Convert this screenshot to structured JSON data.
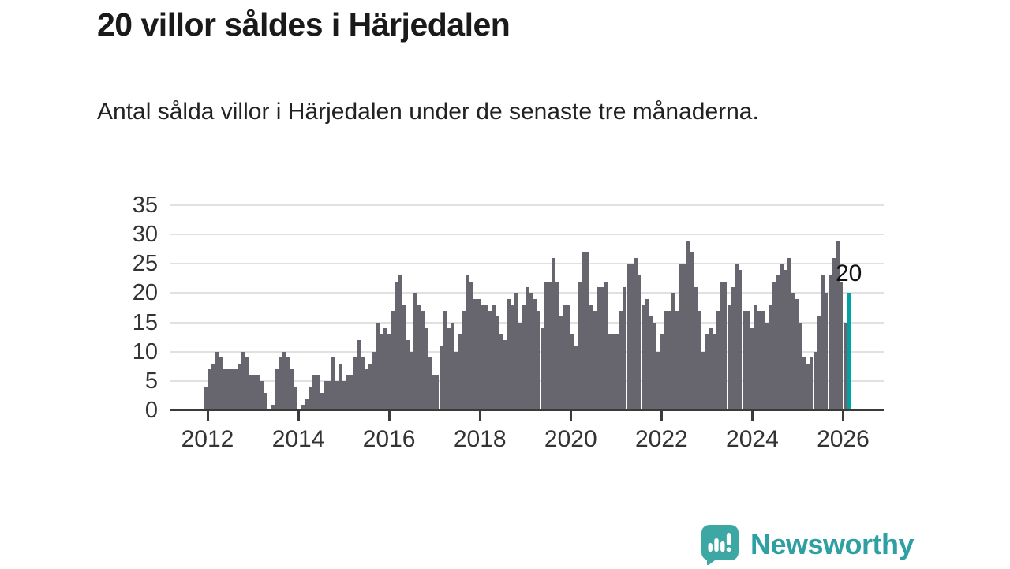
{
  "header": {
    "title": "20 villor såldes i Härjedalen",
    "subtitle": "Antal sålda villor i Härjedalen under de senaste tre månaderna."
  },
  "chart_data": {
    "type": "bar",
    "title": "20 villor såldes i Härjedalen",
    "description": "Antal sålda villor i Härjedalen under de senaste tre månaderna.",
    "frequency": "monthly",
    "start_period": "2012-01",
    "x_tick_labels": [
      "2012",
      "2014",
      "2016",
      "2018",
      "2020",
      "2022",
      "2024",
      "2026"
    ],
    "y_ticks": [
      0,
      5,
      10,
      15,
      20,
      25,
      30,
      35
    ],
    "ylim": [
      0,
      35
    ],
    "grid": true,
    "legend": "none",
    "bar_color": "#67666f",
    "highlight_color": "#00a2a4",
    "values": [
      4,
      7,
      8,
      10,
      9,
      7,
      7,
      7,
      7,
      8,
      10,
      9,
      6,
      6,
      6,
      5,
      3,
      0,
      1,
      7,
      9,
      10,
      9,
      7,
      4,
      0,
      1,
      2,
      4,
      6,
      6,
      3,
      5,
      5,
      9,
      5,
      8,
      5,
      6,
      6,
      9,
      12,
      9,
      7,
      8,
      10,
      15,
      13,
      14,
      13,
      17,
      22,
      23,
      18,
      12,
      10,
      20,
      18,
      17,
      14,
      9,
      6,
      6,
      11,
      17,
      14,
      15,
      10,
      13,
      17,
      23,
      22,
      19,
      19,
      18,
      18,
      17,
      18,
      16,
      13,
      12,
      19,
      18,
      20,
      15,
      18,
      21,
      20,
      19,
      17,
      14,
      22,
      22,
      26,
      22,
      16,
      18,
      18,
      13,
      11,
      22,
      27,
      27,
      18,
      17,
      21,
      21,
      22,
      13,
      13,
      13,
      17,
      21,
      25,
      25,
      26,
      23,
      18,
      19,
      16,
      15,
      10,
      13,
      17,
      17,
      20,
      17,
      25,
      25,
      29,
      27,
      21,
      17,
      10,
      13,
      14,
      13,
      17,
      22,
      22,
      18,
      21,
      25,
      24,
      17,
      17,
      14,
      18,
      17,
      17,
      15,
      18,
      22,
      23,
      25,
      24,
      26,
      20,
      19,
      15,
      9,
      8,
      9,
      10,
      16,
      23,
      20,
      23,
      26,
      29,
      22,
      15,
      20
    ],
    "highlighted_last_bar": true,
    "annotation": {
      "text": "20",
      "value": 20
    }
  },
  "footer": {
    "brand": "Newsworthy",
    "logo_icon": "bar-chart-speech-bubble-icon",
    "brand_color": "#2e9fa2",
    "logo_fill": "#3da7a4"
  }
}
